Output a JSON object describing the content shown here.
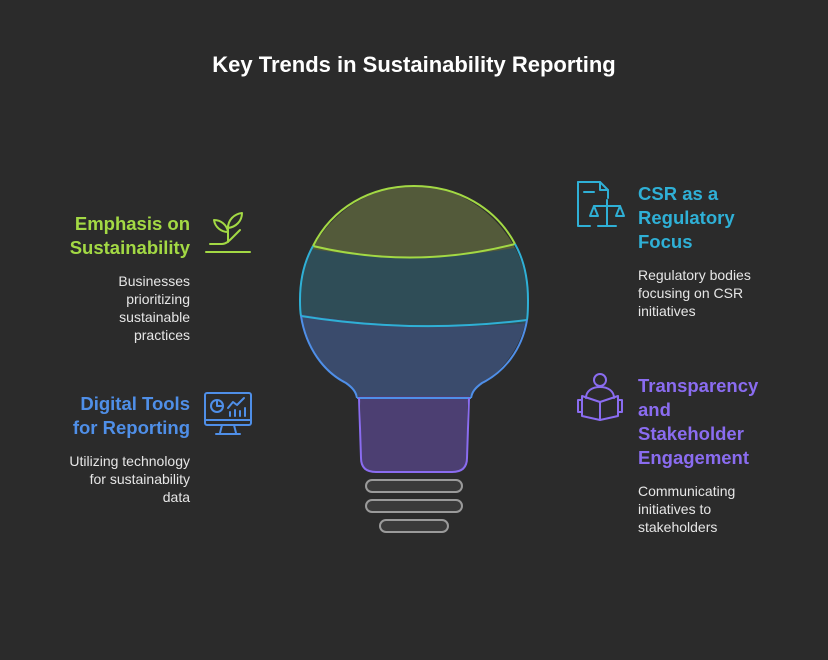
{
  "title": "Key Trends in Sustainability Reporting",
  "colors": {
    "green": "#a3d944",
    "teal": "#2fb0d6",
    "blue": "#4f8fe8",
    "purple": "#8a6cf0",
    "background": "#2b2b2b"
  },
  "items": [
    {
      "id": "emphasis",
      "heading_lines": [
        "Emphasis on",
        "Sustainability"
      ],
      "desc_lines": [
        "Businesses",
        "prioritizing",
        "sustainable",
        "practices"
      ],
      "icon": "plant-hand-icon"
    },
    {
      "id": "csr",
      "heading_lines": [
        "CSR as a",
        "Regulatory",
        "Focus"
      ],
      "desc_lines": [
        "Regulatory bodies",
        "focusing on CSR",
        "initiatives"
      ],
      "icon": "document-scale-icon"
    },
    {
      "id": "digital",
      "heading_lines": [
        "Digital Tools",
        "for Reporting"
      ],
      "desc_lines": [
        "Utilizing technology",
        "for sustainability",
        "data"
      ],
      "icon": "monitor-chart-icon"
    },
    {
      "id": "transparency",
      "heading_lines": [
        "Transparency",
        "and",
        "Stakeholder",
        "Engagement"
      ],
      "desc_lines": [
        "Communicating",
        "initiatives to",
        "stakeholders"
      ],
      "icon": "person-reading-icon"
    }
  ]
}
